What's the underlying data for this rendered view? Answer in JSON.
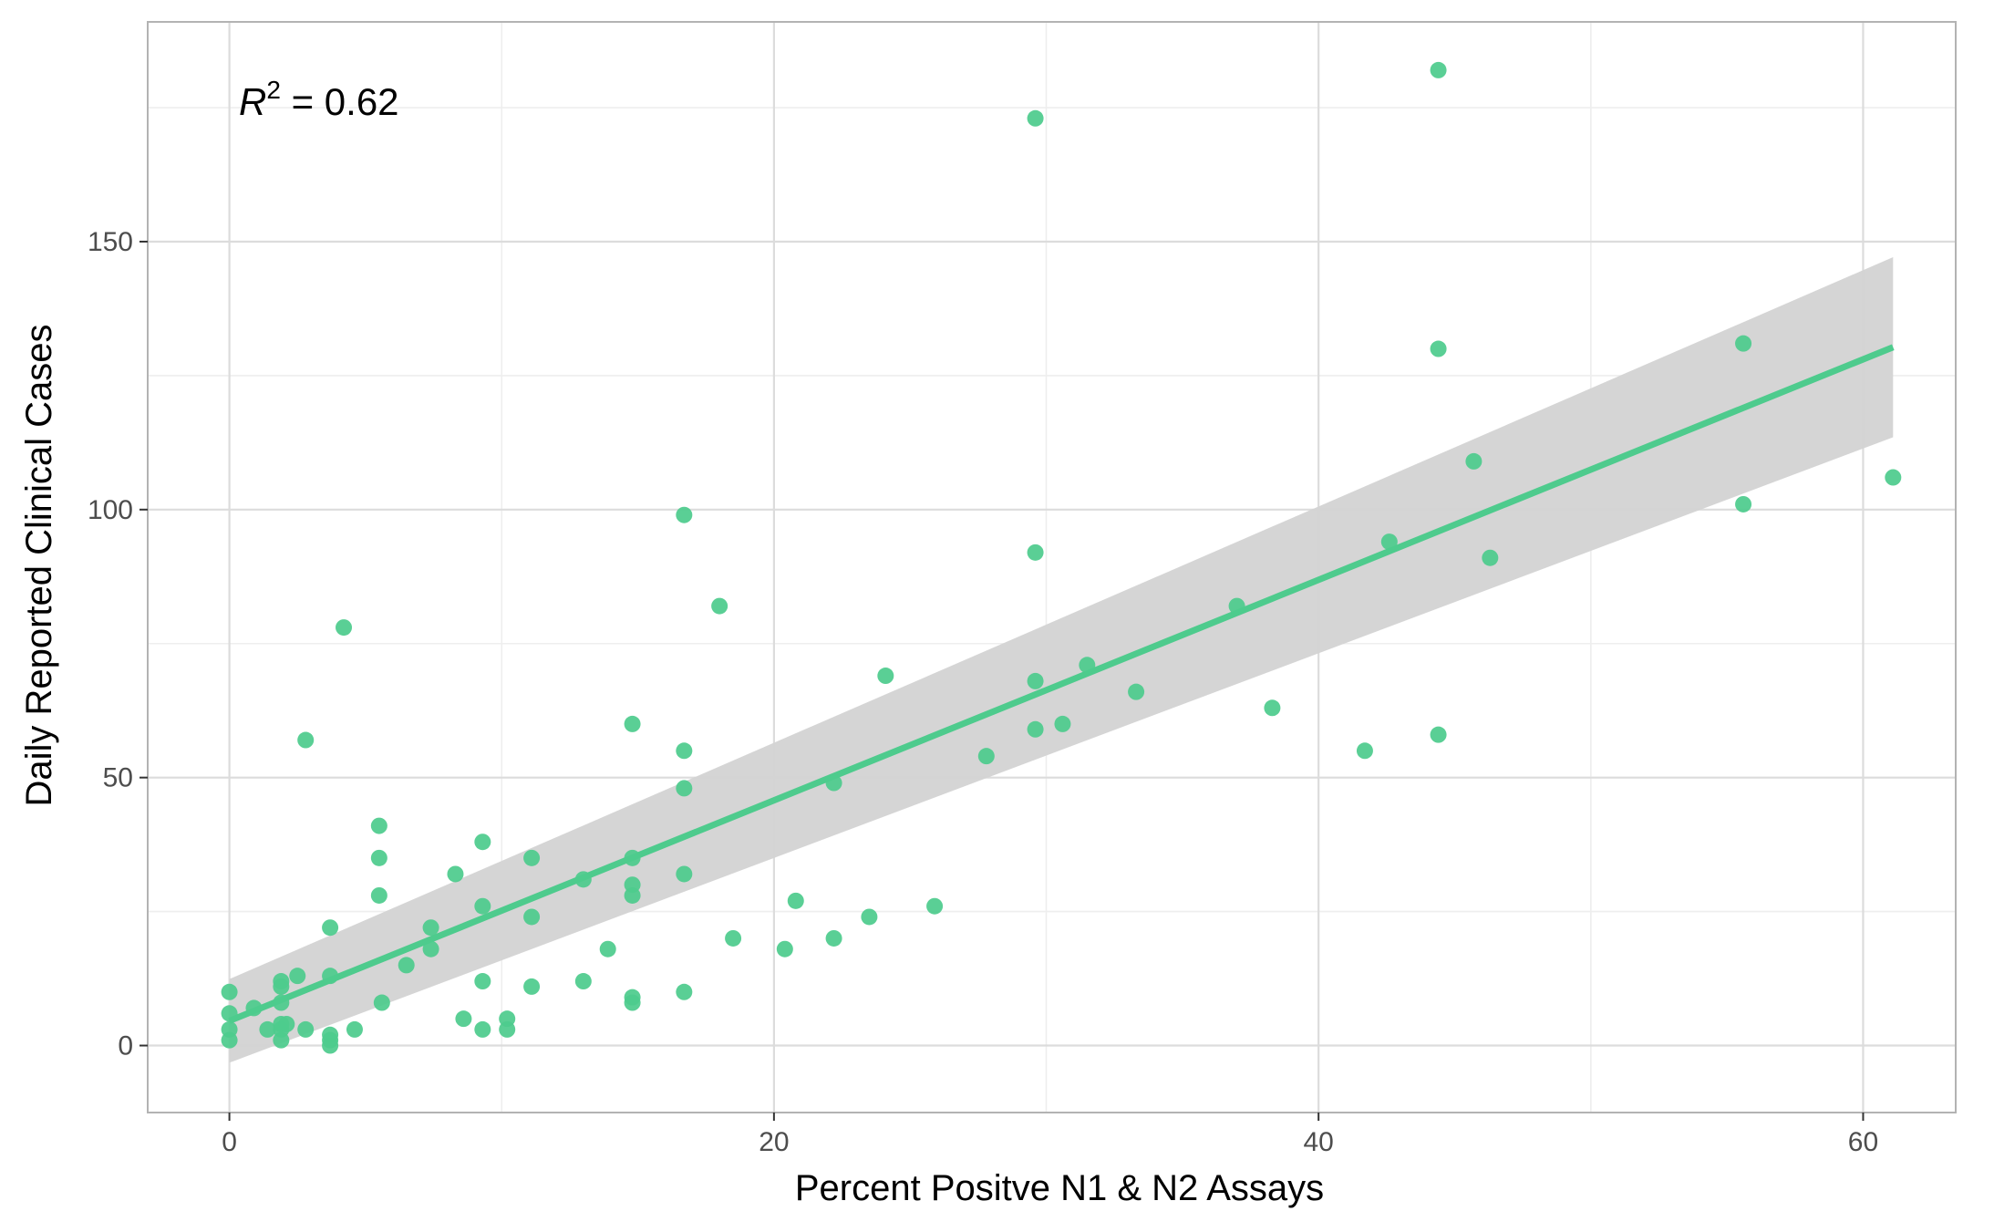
{
  "chart_data": {
    "type": "scatter",
    "title": "",
    "xlabel": "Percent Positve N1 & N2 Assays",
    "ylabel": "Daily Reported Clinical Cases",
    "xlim": [
      -3,
      63.4
    ],
    "ylim": [
      -12.5,
      191
    ],
    "x_ticks": [
      0,
      20,
      40,
      60
    ],
    "x_tick_labels": [
      "0",
      "20",
      "40",
      "60"
    ],
    "y_ticks": [
      0,
      50,
      100,
      150
    ],
    "y_tick_labels": [
      "0",
      "50",
      "100",
      "150"
    ],
    "grid": true,
    "annotation": {
      "var": "R",
      "sup": "2",
      "text": " = 0.62"
    },
    "colors": {
      "points": "#4ECB8D",
      "fit_line": "#4ECB8D",
      "confidence_band": "#D3D3D3",
      "panel_border": "#B3B3B3",
      "grid_major": "#DCDCDC",
      "grid_minor": "#EEEEEE"
    },
    "fit": {
      "x": [
        0,
        61.1
      ],
      "y": [
        4.6,
        130.3
      ],
      "ci_lower": [
        -3.2,
        113.5
      ],
      "ci_upper": [
        12.4,
        147.1
      ]
    },
    "points": [
      {
        "x": 0.0,
        "y": 10
      },
      {
        "x": 0.0,
        "y": 6
      },
      {
        "x": 0.0,
        "y": 3
      },
      {
        "x": 0.0,
        "y": 1
      },
      {
        "x": 0.9,
        "y": 7
      },
      {
        "x": 1.4,
        "y": 3
      },
      {
        "x": 1.9,
        "y": 12
      },
      {
        "x": 1.9,
        "y": 11
      },
      {
        "x": 1.9,
        "y": 8
      },
      {
        "x": 1.9,
        "y": 4
      },
      {
        "x": 1.9,
        "y": 3
      },
      {
        "x": 1.9,
        "y": 1
      },
      {
        "x": 2.1,
        "y": 4
      },
      {
        "x": 2.5,
        "y": 13
      },
      {
        "x": 2.8,
        "y": 57
      },
      {
        "x": 2.8,
        "y": 3
      },
      {
        "x": 3.7,
        "y": 22
      },
      {
        "x": 3.7,
        "y": 13
      },
      {
        "x": 3.7,
        "y": 2
      },
      {
        "x": 3.7,
        "y": 1
      },
      {
        "x": 3.7,
        "y": 0
      },
      {
        "x": 4.2,
        "y": 78
      },
      {
        "x": 4.6,
        "y": 3
      },
      {
        "x": 5.5,
        "y": 41
      },
      {
        "x": 5.5,
        "y": 35
      },
      {
        "x": 5.5,
        "y": 28
      },
      {
        "x": 5.6,
        "y": 8
      },
      {
        "x": 6.5,
        "y": 15
      },
      {
        "x": 7.4,
        "y": 22
      },
      {
        "x": 7.4,
        "y": 18
      },
      {
        "x": 8.3,
        "y": 32
      },
      {
        "x": 8.6,
        "y": 5
      },
      {
        "x": 9.3,
        "y": 38
      },
      {
        "x": 9.3,
        "y": 26
      },
      {
        "x": 9.3,
        "y": 12
      },
      {
        "x": 9.3,
        "y": 3
      },
      {
        "x": 10.2,
        "y": 5
      },
      {
        "x": 10.2,
        "y": 3
      },
      {
        "x": 11.1,
        "y": 35
      },
      {
        "x": 11.1,
        "y": 24
      },
      {
        "x": 11.1,
        "y": 11
      },
      {
        "x": 13.0,
        "y": 31
      },
      {
        "x": 13.0,
        "y": 12
      },
      {
        "x": 13.9,
        "y": 18
      },
      {
        "x": 14.8,
        "y": 60
      },
      {
        "x": 14.8,
        "y": 35
      },
      {
        "x": 14.8,
        "y": 30
      },
      {
        "x": 14.8,
        "y": 28
      },
      {
        "x": 14.8,
        "y": 9
      },
      {
        "x": 14.8,
        "y": 8
      },
      {
        "x": 16.7,
        "y": 99
      },
      {
        "x": 16.7,
        "y": 55
      },
      {
        "x": 16.7,
        "y": 48
      },
      {
        "x": 16.7,
        "y": 32
      },
      {
        "x": 16.7,
        "y": 10
      },
      {
        "x": 18.0,
        "y": 82
      },
      {
        "x": 18.5,
        "y": 20
      },
      {
        "x": 20.4,
        "y": 18
      },
      {
        "x": 20.8,
        "y": 27
      },
      {
        "x": 22.2,
        "y": 49
      },
      {
        "x": 22.2,
        "y": 20
      },
      {
        "x": 23.5,
        "y": 24
      },
      {
        "x": 24.1,
        "y": 69
      },
      {
        "x": 25.9,
        "y": 26
      },
      {
        "x": 27.8,
        "y": 54
      },
      {
        "x": 29.6,
        "y": 173
      },
      {
        "x": 29.6,
        "y": 92
      },
      {
        "x": 29.6,
        "y": 68
      },
      {
        "x": 29.6,
        "y": 59
      },
      {
        "x": 30.6,
        "y": 60
      },
      {
        "x": 31.5,
        "y": 71
      },
      {
        "x": 33.3,
        "y": 66
      },
      {
        "x": 37.0,
        "y": 82
      },
      {
        "x": 38.3,
        "y": 63
      },
      {
        "x": 41.7,
        "y": 55
      },
      {
        "x": 42.6,
        "y": 94
      },
      {
        "x": 44.4,
        "y": 182
      },
      {
        "x": 44.4,
        "y": 130
      },
      {
        "x": 44.4,
        "y": 58
      },
      {
        "x": 45.7,
        "y": 109
      },
      {
        "x": 46.3,
        "y": 91
      },
      {
        "x": 55.6,
        "y": 131
      },
      {
        "x": 55.6,
        "y": 101
      },
      {
        "x": 61.1,
        "y": 106
      }
    ]
  }
}
